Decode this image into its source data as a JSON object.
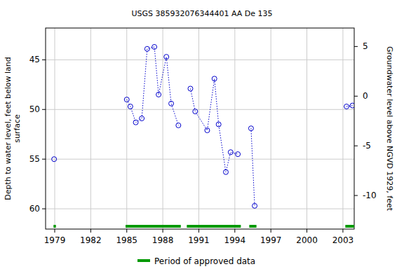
{
  "chart_data": {
    "type": "line",
    "title": "USGS 385932076344401 AA De 135",
    "y_label": [
      "Depth to water level, feet below land",
      "surface"
    ],
    "y2_label": "Groundwater level above NGVD 1929, feet",
    "x": [
      1978.95,
      1982,
      1985.0,
      1985.3,
      1985.75,
      1986.25,
      1986.7,
      1987.3,
      1987.65,
      1988.3,
      1988.7,
      1989.3,
      1989.8,
      1990.3,
      1990.7,
      1991.7,
      1992.3,
      1992.65,
      1993.25,
      1993.65,
      1994.25,
      1994.8,
      1995.35,
      1995.65,
      1999,
      2003.3,
      2003.8
    ],
    "series": [
      {
        "color": "#0000cc",
        "marker": "circle",
        "line_style": "dotted",
        "values": [
          55.0,
          null,
          49.0,
          49.7,
          51.3,
          50.9,
          43.9,
          43.7,
          48.5,
          44.7,
          49.4,
          51.6,
          null,
          47.9,
          50.2,
          52.1,
          46.9,
          51.5,
          56.3,
          54.3,
          54.5,
          null,
          51.9,
          59.7,
          null,
          49.7,
          49.6
        ]
      },
      {
        "name": "Period of approved data",
        "type": "period",
        "color": "#009900",
        "values": [
          [
            1978.9,
            1979.1
          ],
          [
            1984.9,
            1989.5
          ],
          [
            1990.0,
            1994.5
          ],
          [
            1995.2,
            1995.8
          ],
          [
            2003.2,
            2003.94
          ]
        ]
      }
    ],
    "xlim": [
      1978.24,
      2003.94
    ],
    "xticks": [
      1979,
      1982,
      1985,
      1988,
      1991,
      1994,
      1997,
      2000,
      2003
    ],
    "ylim": [
      62.04,
      41.8
    ],
    "yticks": [
      45,
      50,
      55,
      60
    ],
    "y2lim": [
      -13.38,
      6.86
    ],
    "y2ticks": [
      -10,
      -5,
      0,
      5
    ],
    "grid": true,
    "legend": "bottom"
  }
}
